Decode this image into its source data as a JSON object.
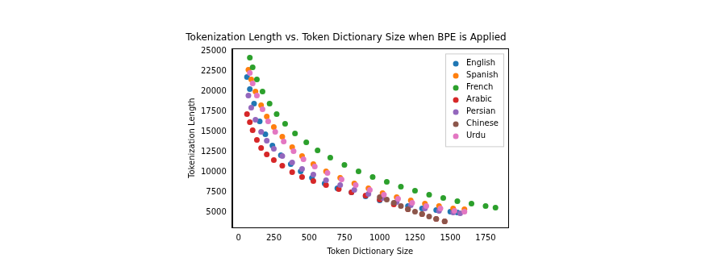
{
  "chart_data": {
    "type": "scatter",
    "title": "Tokenization Length vs. Token Dictionary Size when BPE is Applied",
    "x_label": "Token Dictionary Size",
    "y_label": "Tokenization Length",
    "xlim": [
      -45,
      1910
    ],
    "xticks": [
      0,
      250,
      500,
      750,
      1000,
      1250,
      1500,
      1750
    ],
    "ylim": [
      3150,
      25300
    ],
    "yticks": [
      5000,
      7500,
      10000,
      12500,
      15000,
      17500,
      20000,
      22500,
      25000
    ],
    "grid": false,
    "legend": "upper right",
    "marker": "circle",
    "series": [
      {
        "name": "English",
        "color": "#1f77b4",
        "x": [
          60,
          80,
          110,
          150,
          190,
          240,
          300,
          370,
          440,
          520,
          610,
          700,
          800,
          900,
          1000,
          1100,
          1200,
          1300,
          1400,
          1500,
          1550
        ],
        "values": [
          21800,
          20300,
          18500,
          16300,
          14700,
          13300,
          12100,
          11000,
          10100,
          9300,
          8600,
          8000,
          7500,
          7000,
          6500,
          6100,
          5800,
          5500,
          5300,
          5100,
          5000
        ]
      },
      {
        "name": "Spanish",
        "color": "#ff7f0e",
        "x": [
          70,
          90,
          120,
          160,
          200,
          250,
          310,
          380,
          450,
          530,
          620,
          720,
          820,
          920,
          1020,
          1120,
          1220,
          1320,
          1420,
          1520,
          1600
        ],
        "values": [
          22700,
          21500,
          20000,
          18300,
          16900,
          15600,
          14400,
          13100,
          12000,
          11000,
          10100,
          9300,
          8600,
          8000,
          7400,
          6900,
          6500,
          6100,
          5800,
          5500,
          5400
        ]
      },
      {
        "name": "French",
        "color": "#2ca02c",
        "x": [
          80,
          100,
          130,
          170,
          220,
          270,
          330,
          400,
          480,
          560,
          650,
          750,
          850,
          950,
          1050,
          1150,
          1250,
          1350,
          1450,
          1550,
          1650,
          1750,
          1820
        ],
        "values": [
          24200,
          23000,
          21500,
          20000,
          18500,
          17200,
          16000,
          14800,
          13700,
          12700,
          11800,
          10900,
          10100,
          9400,
          8800,
          8200,
          7700,
          7200,
          6800,
          6400,
          6100,
          5800,
          5600
        ]
      },
      {
        "name": "Arabic",
        "color": "#d62728",
        "x": [
          60,
          80,
          100,
          130,
          160,
          200,
          250,
          310,
          380,
          450,
          530,
          620,
          710,
          800,
          900,
          1000,
          1100,
          1200,
          1300,
          1400,
          1460
        ],
        "values": [
          17200,
          16200,
          15200,
          14000,
          13000,
          12200,
          11500,
          10800,
          10000,
          9400,
          8900,
          8400,
          7900,
          7500,
          7100,
          6600,
          6000,
          5400,
          4800,
          4200,
          3900
        ]
      },
      {
        "name": "Persian",
        "color": "#9467bd",
        "x": [
          70,
          90,
          120,
          160,
          200,
          250,
          310,
          380,
          450,
          530,
          620,
          720,
          820,
          920,
          1020,
          1120,
          1220,
          1320,
          1420,
          1520,
          1570
        ],
        "values": [
          19500,
          18000,
          16500,
          15000,
          13900,
          12900,
          12000,
          11200,
          10400,
          9700,
          9000,
          8400,
          7800,
          7300,
          6800,
          6300,
          5900,
          5500,
          5200,
          5000,
          4900
        ]
      },
      {
        "name": "Chinese",
        "color": "#8c564b",
        "x": [
          1000,
          1050,
          1100,
          1150,
          1200,
          1250,
          1300,
          1350,
          1400,
          1460
        ],
        "values": [
          6900,
          6600,
          6200,
          5800,
          5400,
          5100,
          4800,
          4500,
          4200,
          3900
        ]
      },
      {
        "name": "Urdu",
        "color": "#e377c2",
        "x": [
          80,
          100,
          130,
          170,
          210,
          260,
          320,
          390,
          460,
          540,
          630,
          730,
          830,
          930,
          1030,
          1130,
          1230,
          1330,
          1430,
          1530,
          1600
        ],
        "values": [
          22300,
          21000,
          19500,
          17800,
          16300,
          15000,
          13800,
          12600,
          11600,
          10700,
          9900,
          9100,
          8400,
          7800,
          7200,
          6700,
          6200,
          5800,
          5500,
          5200,
          5100
        ]
      }
    ]
  }
}
